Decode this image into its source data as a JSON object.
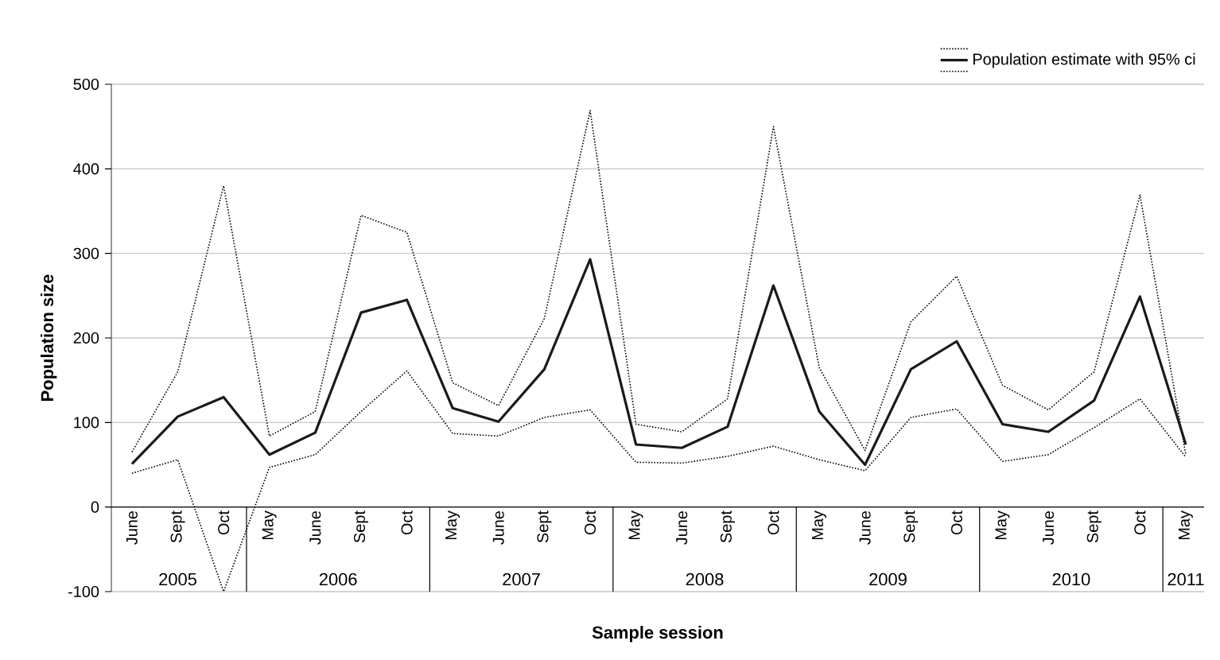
{
  "chart_data": {
    "type": "line",
    "xlabel": "Sample session",
    "ylabel": "Population size",
    "categories": [
      "June",
      "Sept",
      "Oct",
      "May",
      "June",
      "Sept",
      "Oct",
      "May",
      "June",
      "Sept",
      "Oct",
      "May",
      "June",
      "Sept",
      "Oct",
      "May",
      "June",
      "Sept",
      "Oct",
      "May",
      "June",
      "Sept",
      "Oct",
      "May"
    ],
    "series": [
      {
        "color": "#000000",
        "line_style": "dotted",
        "values": [
          65,
          160,
          380,
          84,
          113,
          345,
          325,
          147,
          120,
          223,
          469,
          98,
          89,
          128,
          450,
          165,
          67,
          219,
          273,
          144,
          115,
          160,
          369,
          62
        ]
      },
      {
        "name": "Population estimate with 95% ci",
        "color": "#1a1a1a",
        "line_style": "solid",
        "values": [
          51,
          107,
          130,
          62,
          88,
          230,
          245,
          117,
          101,
          163,
          293,
          74,
          70,
          95,
          262,
          113,
          50,
          163,
          196,
          98,
          89,
          126,
          249,
          74
        ]
      },
      {
        "color": "#000000",
        "line_style": "dotted",
        "values": [
          40,
          56,
          -100,
          47,
          62,
          113,
          161,
          87,
          84,
          106,
          115,
          53,
          52,
          60,
          72,
          56,
          43,
          106,
          116,
          54,
          62,
          94,
          128,
          59
        ]
      }
    ],
    "ylim": [
      -100,
      500
    ],
    "yticks": [
      -100,
      0,
      100,
      200,
      300,
      400,
      500
    ],
    "grid": "y",
    "legend": "top right",
    "marker": "none",
    "annotations": [
      "2005",
      "2006",
      "2007",
      "2008",
      "2009",
      "2010",
      "2011"
    ]
  }
}
